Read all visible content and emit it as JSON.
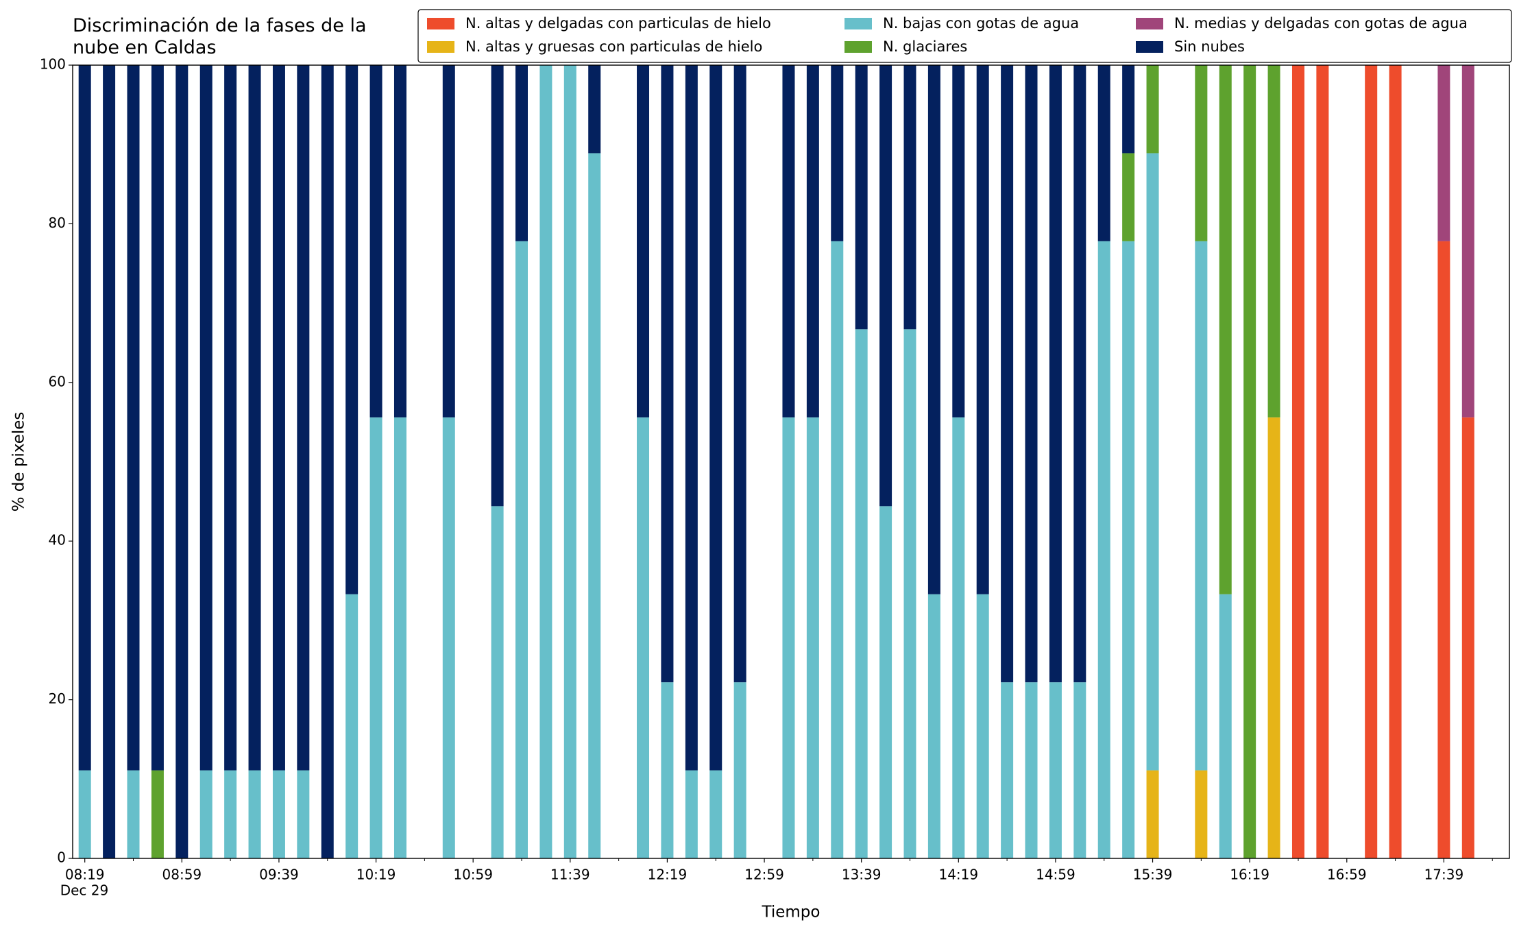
{
  "chart_data": {
    "type": "stacked_bar",
    "title": "Discriminación de la fases de la nube en Caldas",
    "xlabel": "Tiempo",
    "ylabel": "% de pixeles",
    "x_date": "Dec 29",
    "x": [
      "08:19",
      "08:29",
      "08:39",
      "08:49",
      "08:59",
      "09:09",
      "09:19",
      "09:29",
      "09:39",
      "09:49",
      "09:59",
      "10:09",
      "10:19",
      "10:29",
      "10:49",
      "11:09",
      "11:19",
      "11:29",
      "11:39",
      "11:49",
      "12:09",
      "12:19",
      "12:29",
      "12:39",
      "12:49",
      "13:09",
      "13:19",
      "13:29",
      "13:39",
      "13:49",
      "13:59",
      "14:09",
      "14:19",
      "14:29",
      "14:39",
      "14:49",
      "14:59",
      "15:09",
      "15:19",
      "15:29",
      "15:39",
      "15:59",
      "16:09",
      "16:19",
      "16:29",
      "16:39",
      "16:49",
      "17:09",
      "17:19",
      "17:39",
      "17:49"
    ],
    "xlim": [
      "08:14",
      "18:06"
    ],
    "xticks": [
      "08:19",
      "08:59",
      "09:39",
      "10:19",
      "10:59",
      "11:39",
      "12:19",
      "12:59",
      "13:39",
      "14:19",
      "14:59",
      "15:39",
      "16:19",
      "16:59",
      "17:39"
    ],
    "xminorticks": [
      "08:39",
      "09:19",
      "09:59",
      "10:39",
      "11:19",
      "11:59",
      "12:39",
      "13:19",
      "13:59",
      "14:39",
      "15:19",
      "15:59",
      "16:39",
      "17:19",
      "17:59"
    ],
    "ylim": [
      0,
      100
    ],
    "yticks": [
      0,
      20,
      40,
      60,
      80,
      100
    ],
    "grid": false,
    "legend": "upper right",
    "series": [
      {
        "name": "N. altas y delgadas con particulas de hielo",
        "color": "#ee4c2c",
        "values": [
          0,
          0,
          0,
          0,
          0,
          0,
          0,
          0,
          0,
          0,
          0,
          0,
          0,
          0,
          0,
          0,
          0,
          0,
          0,
          0,
          0,
          0,
          0,
          0,
          0,
          0,
          0,
          0,
          0,
          0,
          0,
          0,
          0,
          0,
          0,
          0,
          0,
          0,
          0,
          0,
          0,
          0,
          0,
          0,
          0,
          100,
          100,
          100,
          100,
          77.8,
          55.6
        ]
      },
      {
        "name": "N. altas y gruesas con particulas de hielo",
        "color": "#e6b418",
        "values": [
          0,
          0,
          0,
          0,
          0,
          0,
          0,
          0,
          0,
          0,
          0,
          0,
          0,
          0,
          0,
          0,
          0,
          0,
          0,
          0,
          0,
          0,
          0,
          0,
          0,
          0,
          0,
          0,
          0,
          0,
          0,
          0,
          0,
          0,
          0,
          0,
          0,
          0,
          0,
          0,
          11.1,
          11.1,
          0,
          0,
          55.6,
          0,
          0,
          0,
          0,
          0,
          0
        ]
      },
      {
        "name": "N. bajas con gotas de agua",
        "color": "#67bfca",
        "values": [
          11.1,
          0,
          11.1,
          0,
          0,
          11.1,
          11.1,
          11.1,
          11.1,
          11.1,
          0,
          33.3,
          55.6,
          55.6,
          55.6,
          44.4,
          77.8,
          100,
          100,
          88.9,
          55.6,
          22.2,
          11.1,
          11.1,
          22.2,
          55.6,
          55.6,
          77.8,
          66.7,
          44.4,
          66.7,
          33.3,
          55.6,
          33.3,
          22.2,
          22.2,
          22.2,
          22.2,
          77.8,
          77.8,
          77.8,
          66.7,
          33.3,
          0,
          0,
          0,
          0,
          0,
          0,
          0,
          0
        ]
      },
      {
        "name": "N. glaciares",
        "color": "#5ea22e",
        "values": [
          0,
          0,
          0,
          11.1,
          0,
          0,
          0,
          0,
          0,
          0,
          0,
          0,
          0,
          0,
          0,
          0,
          0,
          0,
          0,
          0,
          0,
          0,
          0,
          0,
          0,
          0,
          0,
          0,
          0,
          0,
          0,
          0,
          0,
          0,
          0,
          0,
          0,
          0,
          0,
          11.1,
          11.1,
          22.2,
          66.7,
          100,
          44.4,
          0,
          0,
          0,
          0,
          0,
          0
        ]
      },
      {
        "name": "N. medias y delgadas con gotas de agua",
        "color": "#a0457a",
        "values": [
          0,
          0,
          0,
          0,
          0,
          0,
          0,
          0,
          0,
          0,
          0,
          0,
          0,
          0,
          0,
          0,
          0,
          0,
          0,
          0,
          0,
          0,
          0,
          0,
          0,
          0,
          0,
          0,
          0,
          0,
          0,
          0,
          0,
          0,
          0,
          0,
          0,
          0,
          0,
          0,
          0,
          0,
          0,
          0,
          0,
          0,
          0,
          0,
          0,
          22.2,
          44.4
        ]
      },
      {
        "name": "Sin nubes",
        "color": "#04215e",
        "values": [
          88.9,
          100,
          88.9,
          88.9,
          100,
          88.9,
          88.9,
          88.9,
          88.9,
          88.9,
          100,
          66.7,
          44.4,
          44.4,
          44.4,
          55.6,
          22.2,
          0,
          0,
          11.1,
          44.4,
          77.8,
          88.9,
          88.9,
          77.8,
          44.4,
          44.4,
          22.2,
          33.3,
          55.6,
          33.3,
          66.7,
          44.4,
          66.7,
          77.8,
          77.8,
          77.8,
          77.8,
          22.2,
          11.1,
          0,
          0,
          0,
          0,
          0,
          0,
          0,
          0,
          0,
          0,
          0
        ]
      }
    ]
  }
}
